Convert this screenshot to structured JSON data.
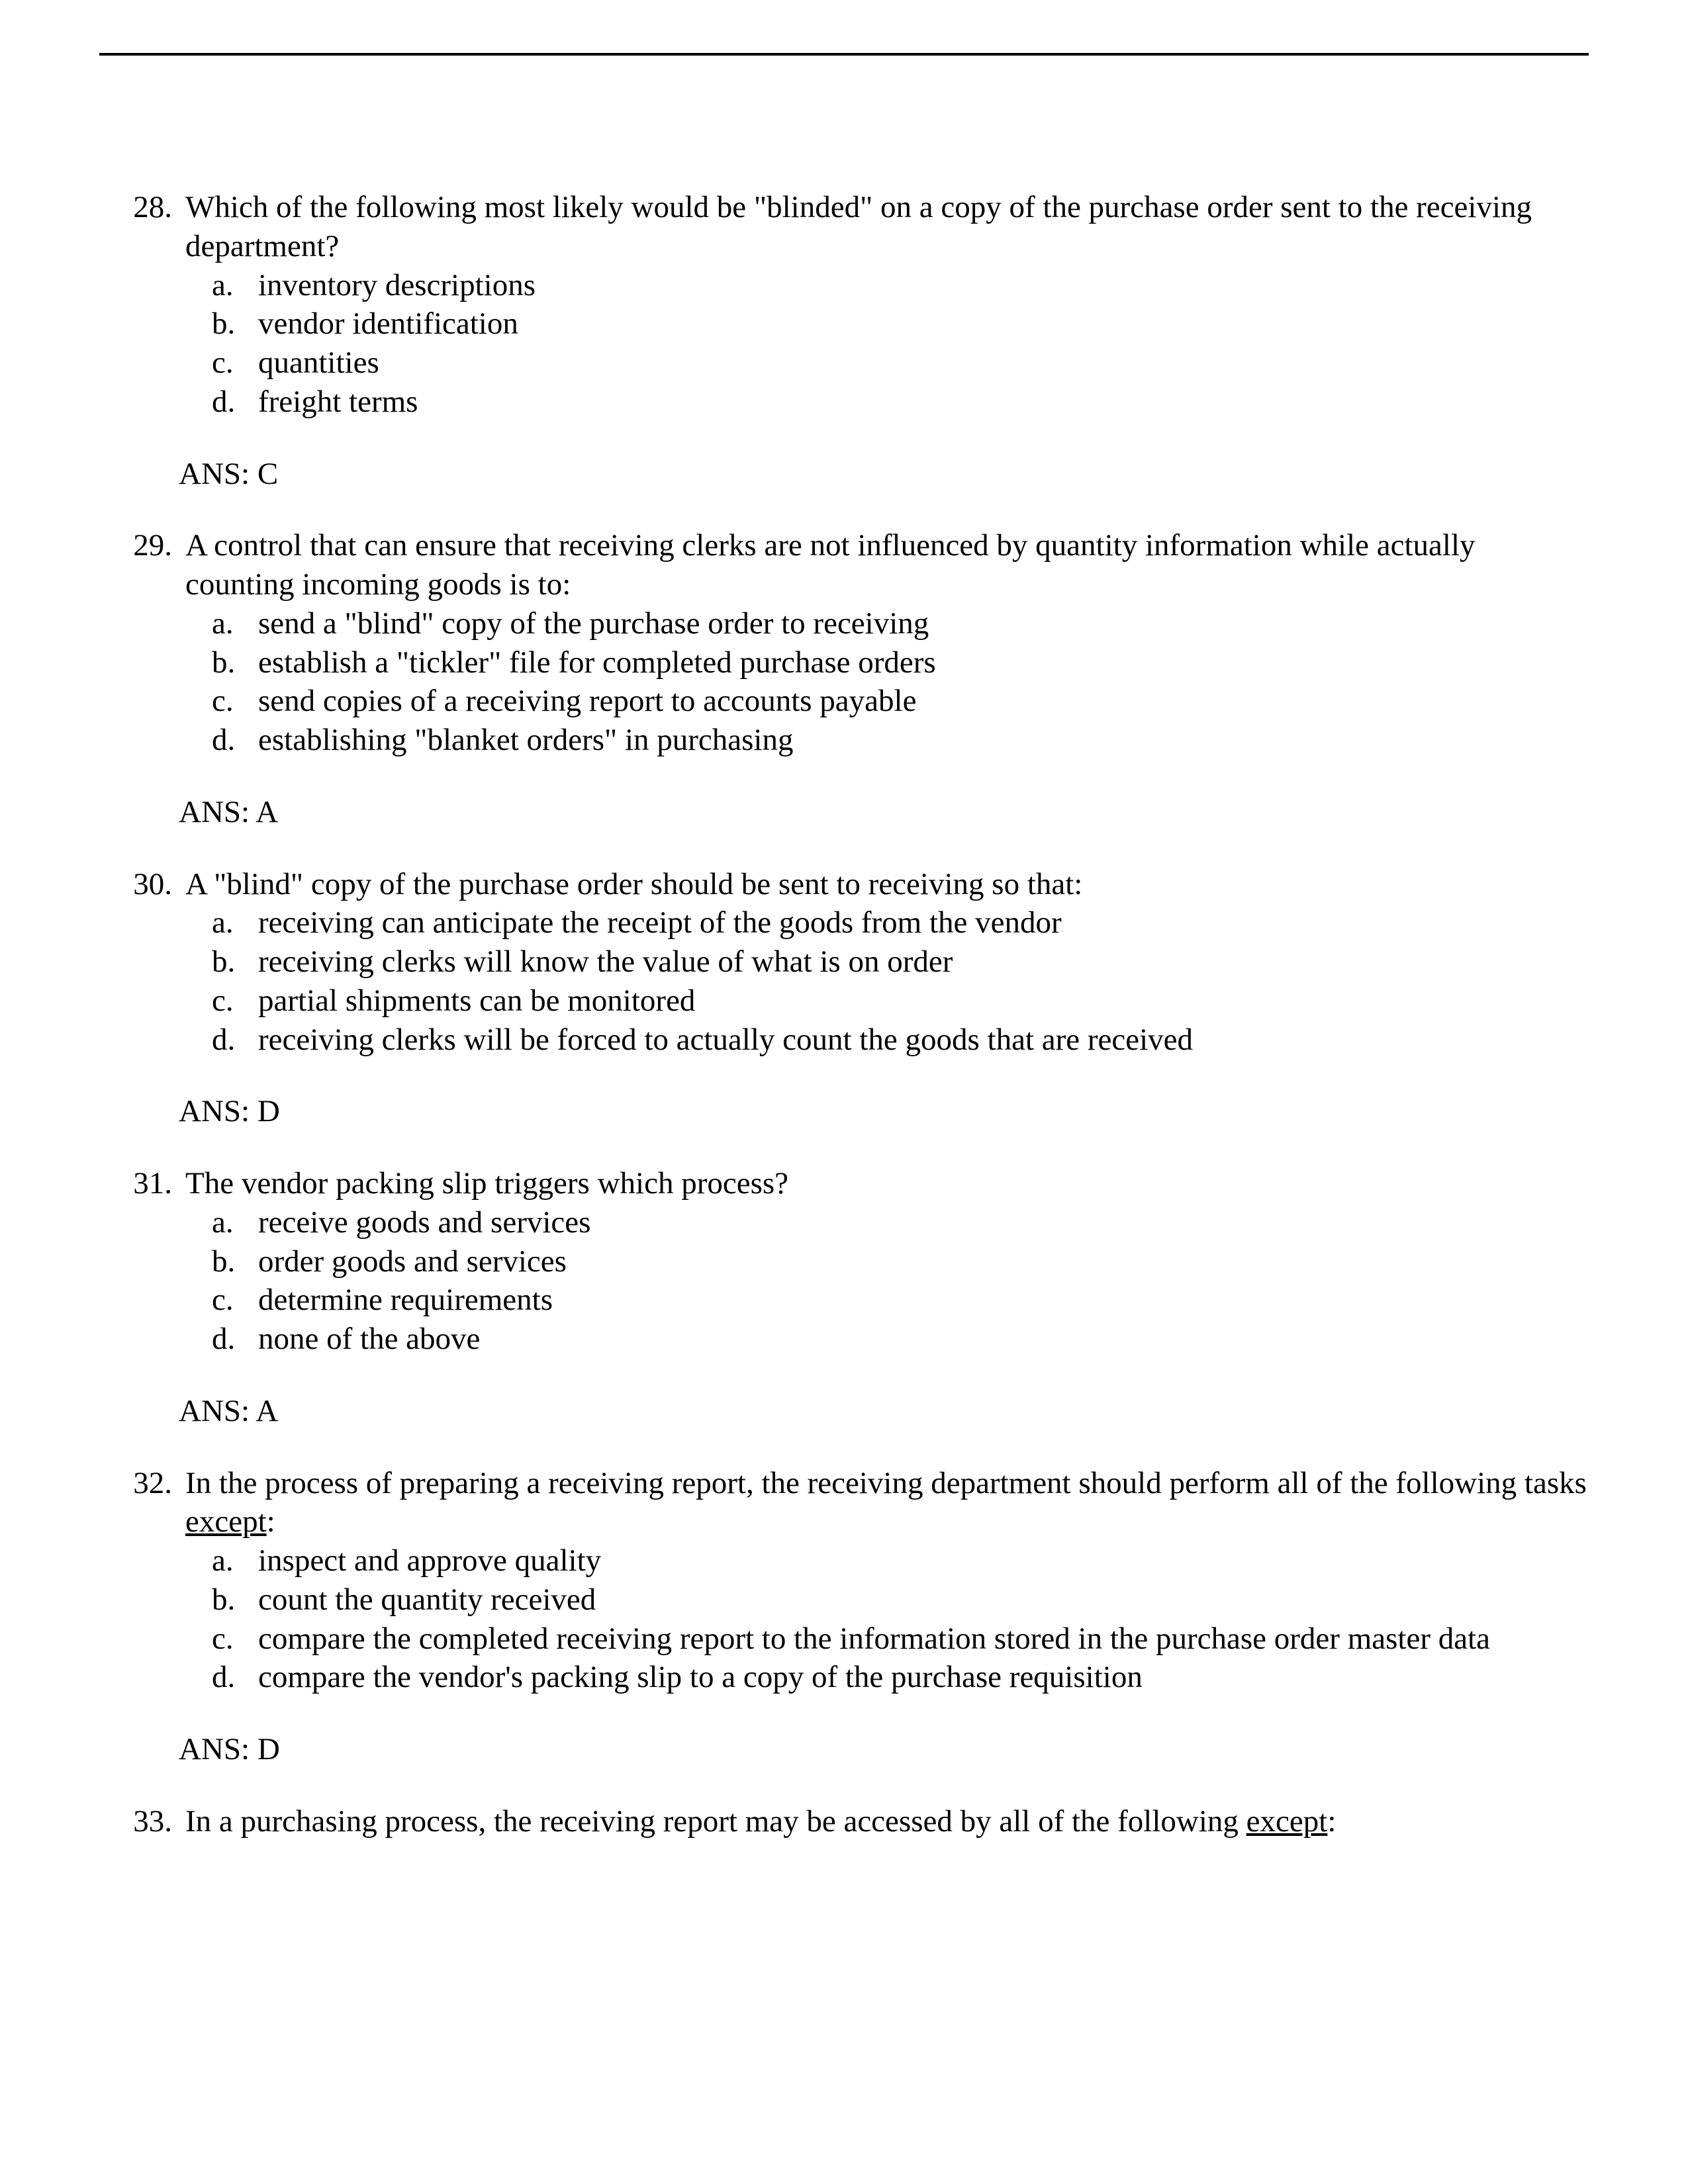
{
  "page": {
    "font_family": "Times New Roman",
    "font_size_pt": 12,
    "text_color": "#000000",
    "background_color": "#ffffff",
    "rule_color": "#000000"
  },
  "answer_prefix": "ANS:  ",
  "questions": [
    {
      "number": "28.",
      "text": "Which of the following most likely would be \"blinded\" on a copy of the purchase order sent to the receiving department?",
      "options": [
        {
          "label": "a.",
          "text": "inventory descriptions"
        },
        {
          "label": "b.",
          "text": "vendor identification"
        },
        {
          "label": "c.",
          "text": "quantities"
        },
        {
          "label": "d.",
          "text": "freight terms"
        }
      ],
      "answer": "C"
    },
    {
      "number": "29.",
      "text": "A control that can ensure that receiving clerks are not influenced by quantity information while actually counting incoming goods is to:",
      "options": [
        {
          "label": "a.",
          "text": "send a \"blind\" copy of the purchase order to receiving"
        },
        {
          "label": "b.",
          "text": "establish a \"tickler\" file for completed purchase orders"
        },
        {
          "label": "c.",
          "text": "send copies of a receiving report to accounts payable"
        },
        {
          "label": "d.",
          "text": "establishing \"blanket orders\" in purchasing"
        }
      ],
      "answer": "A"
    },
    {
      "number": "30.",
      "text": "A \"blind\" copy of the purchase order should be sent to receiving so that:",
      "options": [
        {
          "label": "a.",
          "text": "receiving can anticipate the receipt of the goods from the vendor"
        },
        {
          "label": "b.",
          "text": "receiving clerks will know the value of what is on order"
        },
        {
          "label": "c.",
          "text": "partial shipments can be monitored"
        },
        {
          "label": "d.",
          "text": "receiving clerks will be forced to actually count the goods that are received"
        }
      ],
      "answer": "D"
    },
    {
      "number": "31.",
      "text": "The vendor packing slip triggers which process?",
      "options": [
        {
          "label": "a.",
          "text": "receive goods and services"
        },
        {
          "label": "b.",
          "text": "order goods and services"
        },
        {
          "label": "c.",
          "text": "determine requirements"
        },
        {
          "label": "d.",
          "text": "none of the above"
        }
      ],
      "answer": "A"
    },
    {
      "number": "32.",
      "text_pre": "In the process of preparing a receiving report, the receiving department should perform all of the following tasks ",
      "underline": "except",
      "text_post": ":",
      "options": [
        {
          "label": "a.",
          "text": "inspect and approve quality"
        },
        {
          "label": "b.",
          "text": "count the quantity received"
        },
        {
          "label": "c.",
          "text": "compare the completed receiving report to the information stored in the purchase order master data"
        },
        {
          "label": "d.",
          "text": "compare the vendor's packing slip to a copy of the purchase requisition"
        }
      ],
      "answer": "D"
    },
    {
      "number": "33.",
      "text_pre": "In a purchasing process, the receiving report may be accessed by all of the following ",
      "underline": "except",
      "text_post": ":",
      "options": [],
      "answer": null
    }
  ]
}
